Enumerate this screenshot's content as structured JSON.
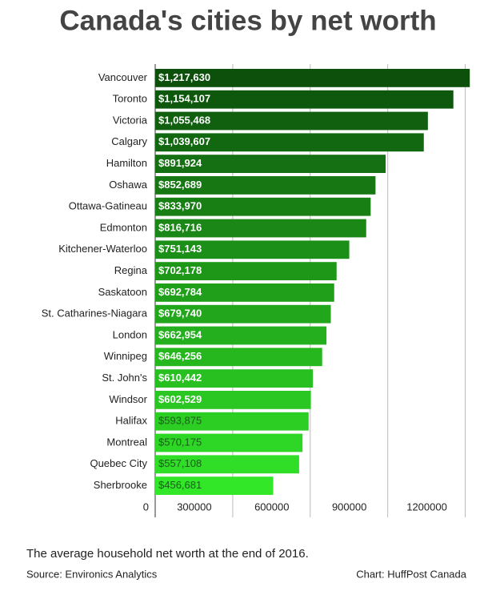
{
  "chart_data": {
    "type": "hbar",
    "title": "Canada's cities by net worth",
    "categories": [
      "Vancouver",
      "Toronto",
      "Victoria",
      "Calgary",
      "Hamilton",
      "Oshawa",
      "Ottawa-Gatineau",
      "Edmonton",
      "Kitchener-Waterloo",
      "Regina",
      "Saskatoon",
      "St. Catharines-Niagara",
      "London",
      "Winnipeg",
      "St. John's",
      "Windsor",
      "Halifax",
      "Montreal",
      "Quebec City",
      "Sherbrooke"
    ],
    "values": [
      1217630,
      1154107,
      1055468,
      1039607,
      891924,
      852689,
      833970,
      816716,
      751143,
      702178,
      692784,
      679740,
      662954,
      646256,
      610442,
      602529,
      593875,
      570175,
      557108,
      456681
    ],
    "value_labels": [
      "$1,217,630",
      "$1,154,107",
      "$1,055,468",
      "$1,039,607",
      "$891,924",
      "$852,689",
      "$833,970",
      "$816,716",
      "$751,143",
      "$702,178",
      "$692,784",
      "$679,740",
      "$662,954",
      "$646,256",
      "$610,442",
      "$602,529",
      "$593,875",
      "$570,175",
      "$557,108",
      "$456,681"
    ],
    "colors": [
      "#0c500c",
      "#0e580d",
      "#10600f",
      "#126810",
      "#147012",
      "#167713",
      "#187f15",
      "#1a8716",
      "#1c8f18",
      "#1e9719",
      "#209f1b",
      "#22a71c",
      "#24af1e",
      "#26b71f",
      "#28bf21",
      "#2ac622",
      "#2cce24",
      "#2ed625",
      "#30de27",
      "#32e628"
    ],
    "xlim": [
      0,
      1220000
    ],
    "xticks": [
      0,
      300000,
      600000,
      900000,
      1200000
    ],
    "grid": true,
    "caption": "The average household net worth at the end of 2016.",
    "source": "Source: Environics Analytics",
    "credit": "Chart: HuffPost Canada"
  }
}
